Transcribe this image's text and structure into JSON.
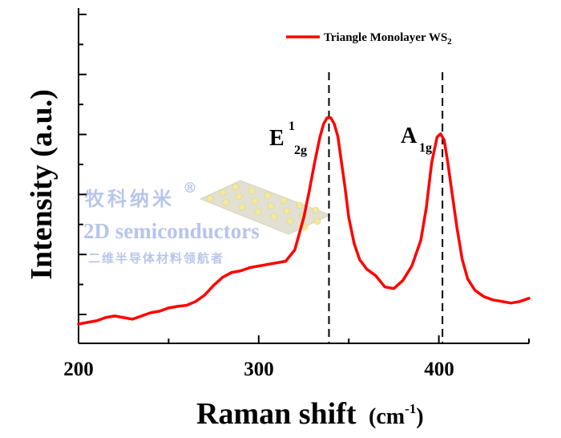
{
  "chart_data": {
    "type": "line",
    "xlabel": "Raman shift",
    "xlabel_unit": "(cm",
    "xlabel_unit_exp": "-1",
    "xlabel_unit_close": ")",
    "ylabel": "Intensity (a.u.)",
    "xlim": [
      200,
      450
    ],
    "ylim": [
      0,
      1
    ],
    "x_ticks": [
      200,
      300,
      400
    ],
    "x_tick_labels": [
      "200",
      "300",
      "400"
    ],
    "legend": {
      "placement": "top-right",
      "entry_text": "Triangle Monolayer WS",
      "entry_sub": "2",
      "color": "#ff0000"
    },
    "series": [
      {
        "color": "#ff0000",
        "x": [
          200,
          205,
          210,
          215,
          220,
          225,
          230,
          235,
          240,
          245,
          250,
          255,
          260,
          265,
          270,
          275,
          280,
          285,
          290,
          295,
          300,
          305,
          310,
          315,
          320,
          325,
          328,
          331,
          334,
          336,
          338,
          340,
          342,
          344,
          346,
          348,
          350,
          353,
          356,
          360,
          365,
          370,
          375,
          380,
          385,
          390,
          393,
          396,
          399,
          401,
          403,
          405,
          407,
          410,
          413,
          416,
          420,
          425,
          430,
          435,
          440,
          445,
          450
        ],
        "y": [
          0.02,
          0.025,
          0.03,
          0.04,
          0.045,
          0.04,
          0.035,
          0.045,
          0.055,
          0.06,
          0.07,
          0.075,
          0.078,
          0.09,
          0.11,
          0.14,
          0.165,
          0.18,
          0.185,
          0.195,
          0.2,
          0.205,
          0.21,
          0.215,
          0.25,
          0.35,
          0.43,
          0.52,
          0.6,
          0.64,
          0.66,
          0.66,
          0.64,
          0.6,
          0.52,
          0.44,
          0.35,
          0.27,
          0.22,
          0.19,
          0.17,
          0.135,
          0.13,
          0.155,
          0.2,
          0.28,
          0.38,
          0.52,
          0.6,
          0.61,
          0.59,
          0.52,
          0.44,
          0.32,
          0.22,
          0.16,
          0.125,
          0.105,
          0.095,
          0.09,
          0.085,
          0.09,
          0.1
        ]
      }
    ],
    "annotations": [
      {
        "x": 339,
        "label_main": "E",
        "label_sup": "1",
        "label_sub": "2g"
      },
      {
        "x": 402,
        "label_main": "A",
        "label_sub": "1g"
      }
    ]
  },
  "watermark": {
    "cn_top": "牧科纳米",
    "reg_mark": "®",
    "en": "2D semiconductors",
    "cn_bottom": "二维半导体材料领航者"
  }
}
